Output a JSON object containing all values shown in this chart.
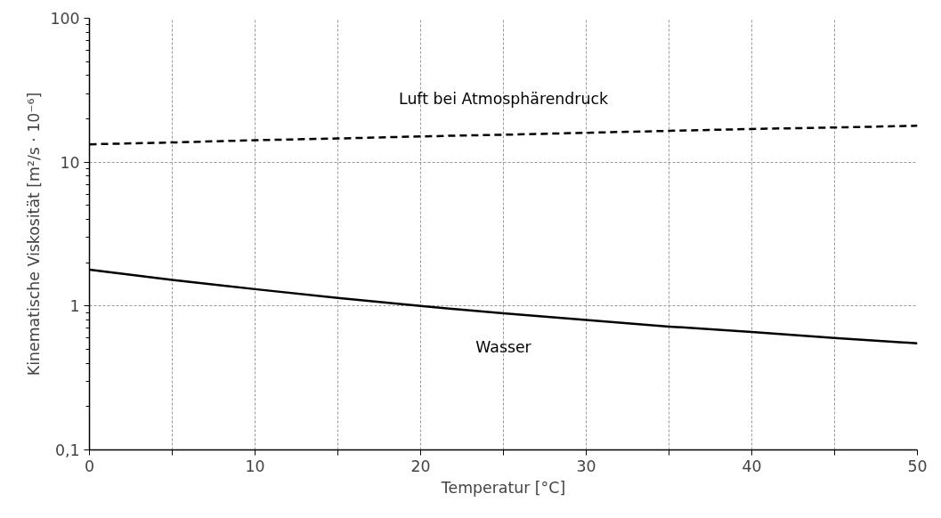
{
  "chart_data": {
    "type": "line",
    "xlabel": "Temperatur [°C]",
    "ylabel": "Kinematische Viskosität [m²/s · 10⁻⁶]",
    "x": [
      0,
      5,
      10,
      15,
      20,
      25,
      30,
      35,
      40,
      45,
      50
    ],
    "series": [
      {
        "name": "Luft bei Atmosphärendruck",
        "color": "#000000",
        "line_style": "dashed",
        "values": [
          13.3,
          13.7,
          14.2,
          14.6,
          15.1,
          15.5,
          16.0,
          16.5,
          17.0,
          17.4,
          17.9
        ]
      },
      {
        "name": "Wasser",
        "color": "#000000",
        "line_style": "solid",
        "values": [
          1.79,
          1.52,
          1.31,
          1.14,
          1.0,
          0.89,
          0.8,
          0.72,
          0.66,
          0.6,
          0.55
        ]
      }
    ],
    "log": "y",
    "xlim": [
      0,
      50
    ],
    "ylim": [
      0.1,
      100
    ],
    "xticks": [
      0,
      {
        "value": 5,
        "label": null
      },
      10,
      {
        "value": 15,
        "label": null
      },
      20,
      {
        "value": 25,
        "label": null
      },
      30,
      {
        "value": 35,
        "label": null
      },
      40,
      {
        "value": 45,
        "label": null
      },
      50
    ],
    "yticks": [
      {
        "value": 0.1,
        "label": "0,1"
      },
      1,
      10,
      100
    ],
    "grid": true,
    "marker": "none"
  }
}
